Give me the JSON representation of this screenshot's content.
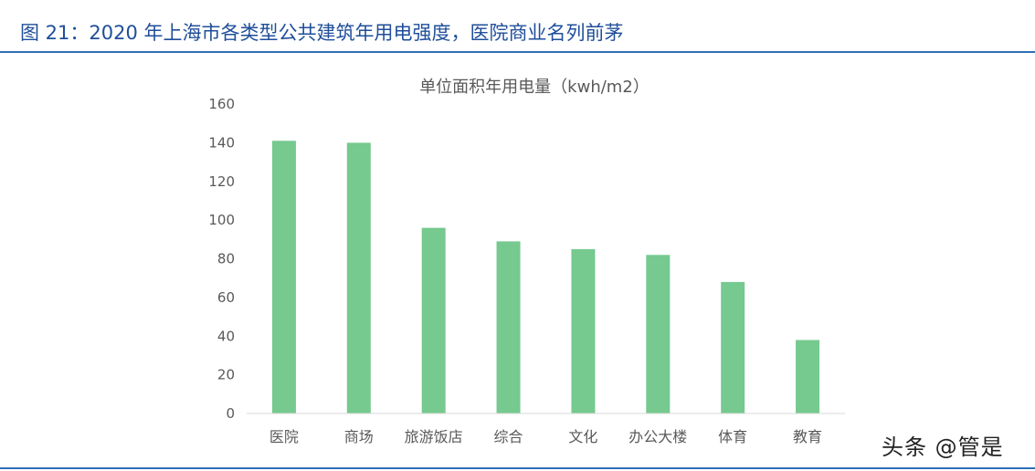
{
  "caption": "图 21：2020 年上海市各类型公共建筑年用电强度，医院商业名列前茅",
  "watermark": "头条 @管是",
  "colors": {
    "bar": "#76c98f",
    "caption": "#1f4e9a",
    "rule": "#2f6fb5",
    "axis": "#d9d9d9",
    "text": "#595959"
  },
  "chart_data": {
    "type": "bar",
    "title": "单位面积年用电量（kwh/m2）",
    "xlabel": "",
    "ylabel": "",
    "categories": [
      "医院",
      "商场",
      "旅游饭店",
      "综合",
      "文化",
      "办公大楼",
      "体育",
      "教育"
    ],
    "values": [
      141,
      140,
      96,
      89,
      85,
      82,
      68,
      38
    ],
    "ylim": [
      0,
      160
    ],
    "yticks": [
      0,
      20,
      40,
      60,
      80,
      100,
      120,
      140,
      160
    ],
    "grid": false,
    "legend": "none"
  }
}
